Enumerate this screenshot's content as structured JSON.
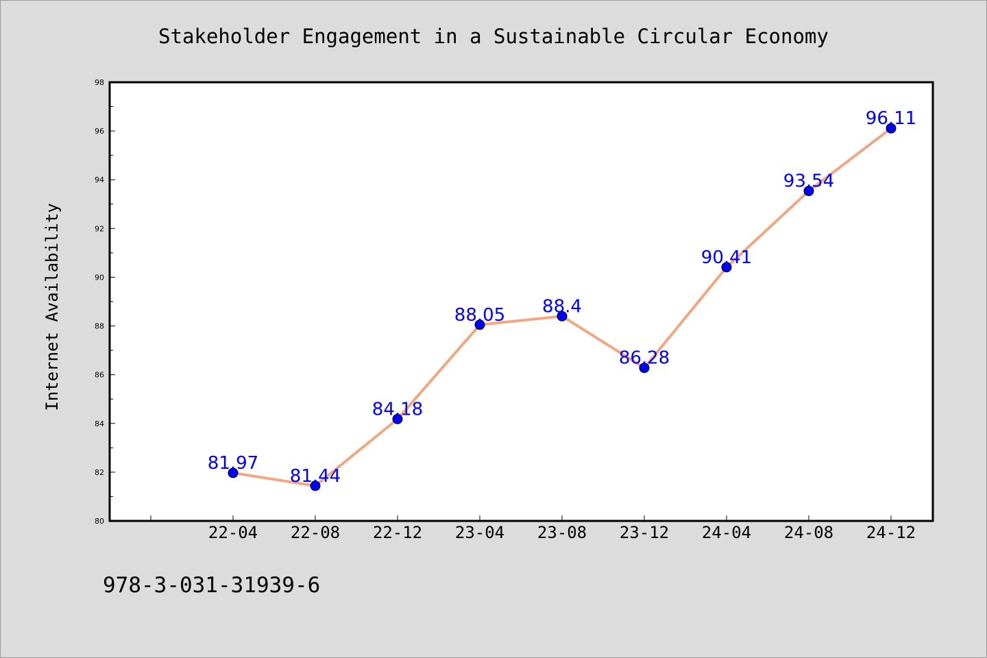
{
  "chart_data": {
    "type": "line",
    "title": "Stakeholder Engagement in a Sustainable Circular Economy",
    "xlabel": "",
    "ylabel": "Internet Availability",
    "categories": [
      "22-04",
      "22-08",
      "22-12",
      "23-04",
      "23-08",
      "23-12",
      "24-04",
      "24-08",
      "24-12"
    ],
    "series": [
      {
        "values": [
          81.97,
          81.44,
          84.18,
          88.05,
          88.4,
          86.28,
          90.41,
          93.54,
          96.11
        ],
        "color": "#f4a582",
        "marker_color": "#0000ff"
      }
    ],
    "data_labels": [
      "81.97",
      "81.44",
      "84.18",
      "88.05",
      "88.4",
      "86.28",
      "90.41",
      "93.54",
      "96.11"
    ],
    "ylim": [
      80,
      98
    ],
    "y_ticks": [
      80,
      82,
      84,
      86,
      88,
      90,
      92,
      94,
      96,
      98
    ],
    "grid": false,
    "legend": "none"
  },
  "footer_text": "978-3-031-31939-6",
  "colors": {
    "background": "#dcdcdc",
    "plot_background": "#ffffff",
    "line": "#f4a582",
    "marker": "#0000ff",
    "data_label": "#0000ff"
  }
}
